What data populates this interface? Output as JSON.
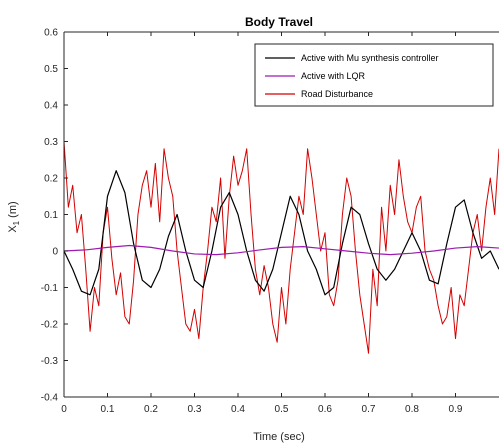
{
  "chart_data": {
    "type": "line",
    "title": "Body Travel",
    "xlabel": "Time (sec)",
    "ylabel": "X",
    "ylabel_subscript": "1",
    "ylabel_unit": " (m)",
    "xlim": [
      0,
      1
    ],
    "ylim": [
      -0.4,
      0.6
    ],
    "xticks": [
      0,
      0.1,
      0.2,
      0.3,
      0.4,
      0.5,
      0.6,
      0.7,
      0.8,
      0.9
    ],
    "xtick_labels": [
      "0",
      "0.1",
      "0.2",
      "0.3",
      "0.4",
      "0.5",
      "0.6",
      "0.7",
      "0.8",
      "0.9"
    ],
    "yticks": [
      -0.4,
      -0.3,
      -0.2,
      -0.1,
      0,
      0.1,
      0.2,
      0.3,
      0.4,
      0.5,
      0.6
    ],
    "ytick_labels": [
      "-0.4",
      "-0.3",
      "-0.2",
      "-0.1",
      "0",
      "0.1",
      "0.2",
      "0.3",
      "0.4",
      "0.5",
      "0.6"
    ],
    "grid": false,
    "legend_position": "top-right",
    "series": [
      {
        "name": "Active with Mu synthesis controller",
        "color": "#000000",
        "x": [
          0,
          0.02,
          0.04,
          0.06,
          0.08,
          0.1,
          0.12,
          0.14,
          0.16,
          0.18,
          0.2,
          0.22,
          0.24,
          0.26,
          0.28,
          0.3,
          0.32,
          0.34,
          0.36,
          0.38,
          0.4,
          0.42,
          0.44,
          0.46,
          0.48,
          0.5,
          0.52,
          0.54,
          0.56,
          0.58,
          0.6,
          0.62,
          0.64,
          0.66,
          0.68,
          0.7,
          0.72,
          0.74,
          0.76,
          0.78,
          0.8,
          0.82,
          0.84,
          0.86,
          0.88,
          0.9,
          0.92,
          0.94,
          0.96,
          0.98,
          1.0
        ],
        "y": [
          0.0,
          -0.05,
          -0.11,
          -0.12,
          -0.05,
          0.15,
          0.22,
          0.16,
          0.02,
          -0.08,
          -0.1,
          -0.05,
          0.04,
          0.1,
          0.0,
          -0.08,
          -0.1,
          0.0,
          0.12,
          0.16,
          0.1,
          0.0,
          -0.08,
          -0.11,
          -0.05,
          0.05,
          0.15,
          0.1,
          0.0,
          -0.05,
          -0.12,
          -0.1,
          0.02,
          0.12,
          0.1,
          0.02,
          -0.05,
          -0.08,
          -0.05,
          0.0,
          0.05,
          0.0,
          -0.08,
          -0.09,
          0.02,
          0.12,
          0.14,
          0.05,
          -0.02,
          0.0,
          -0.05
        ]
      },
      {
        "name": "Active with LQR",
        "color": "#9b1bb0",
        "x": [
          0,
          0.05,
          0.1,
          0.15,
          0.2,
          0.25,
          0.3,
          0.35,
          0.4,
          0.45,
          0.5,
          0.55,
          0.6,
          0.65,
          0.7,
          0.75,
          0.8,
          0.85,
          0.9,
          0.95,
          1.0
        ],
        "y": [
          0.0,
          0.003,
          0.01,
          0.015,
          0.01,
          0.0,
          -0.008,
          -0.01,
          -0.005,
          0.003,
          0.01,
          0.012,
          0.006,
          0.0,
          -0.006,
          -0.01,
          -0.006,
          0.0,
          0.008,
          0.012,
          0.008
        ]
      },
      {
        "name": "Road Disturbance",
        "color": "#d40000",
        "x": [
          0,
          0.01,
          0.02,
          0.03,
          0.04,
          0.05,
          0.06,
          0.07,
          0.08,
          0.09,
          0.1,
          0.11,
          0.12,
          0.13,
          0.14,
          0.15,
          0.16,
          0.17,
          0.18,
          0.19,
          0.2,
          0.21,
          0.22,
          0.23,
          0.24,
          0.25,
          0.26,
          0.27,
          0.28,
          0.29,
          0.3,
          0.31,
          0.32,
          0.33,
          0.34,
          0.35,
          0.36,
          0.37,
          0.38,
          0.39,
          0.4,
          0.41,
          0.42,
          0.43,
          0.44,
          0.45,
          0.46,
          0.47,
          0.48,
          0.49,
          0.5,
          0.51,
          0.52,
          0.53,
          0.54,
          0.55,
          0.56,
          0.57,
          0.58,
          0.59,
          0.6,
          0.61,
          0.62,
          0.63,
          0.64,
          0.65,
          0.66,
          0.67,
          0.68,
          0.69,
          0.7,
          0.71,
          0.72,
          0.73,
          0.74,
          0.75,
          0.76,
          0.77,
          0.78,
          0.79,
          0.8,
          0.81,
          0.82,
          0.83,
          0.84,
          0.85,
          0.86,
          0.87,
          0.88,
          0.89,
          0.9,
          0.91,
          0.92,
          0.93,
          0.94,
          0.95,
          0.96,
          0.97,
          0.98,
          0.99,
          1.0
        ],
        "y": [
          0.3,
          0.12,
          0.18,
          0.05,
          0.1,
          -0.05,
          -0.22,
          -0.1,
          -0.15,
          0.05,
          0.12,
          -0.02,
          -0.12,
          -0.06,
          -0.18,
          -0.2,
          -0.08,
          0.1,
          0.18,
          0.22,
          0.12,
          0.24,
          0.08,
          0.28,
          0.2,
          0.15,
          0.0,
          -0.1,
          -0.2,
          -0.22,
          -0.16,
          -0.24,
          -0.1,
          0.0,
          0.12,
          0.08,
          0.2,
          -0.02,
          0.15,
          0.26,
          0.18,
          0.22,
          0.28,
          0.1,
          -0.05,
          -0.12,
          -0.04,
          -0.1,
          -0.2,
          -0.25,
          -0.1,
          -0.2,
          -0.05,
          0.05,
          0.15,
          0.1,
          0.28,
          0.2,
          0.1,
          0.0,
          0.05,
          -0.12,
          -0.15,
          -0.08,
          0.1,
          0.2,
          0.15,
          0.0,
          -0.12,
          -0.2,
          -0.28,
          -0.05,
          -0.15,
          0.12,
          0.0,
          0.18,
          0.1,
          0.25,
          0.15,
          0.08,
          0.05,
          0.12,
          0.15,
          0.0,
          -0.05,
          -0.08,
          -0.15,
          -0.2,
          -0.18,
          -0.1,
          -0.24,
          -0.12,
          -0.15,
          -0.05,
          0.05,
          0.1,
          0.0,
          0.12,
          0.2,
          0.1,
          0.28
        ]
      }
    ]
  }
}
